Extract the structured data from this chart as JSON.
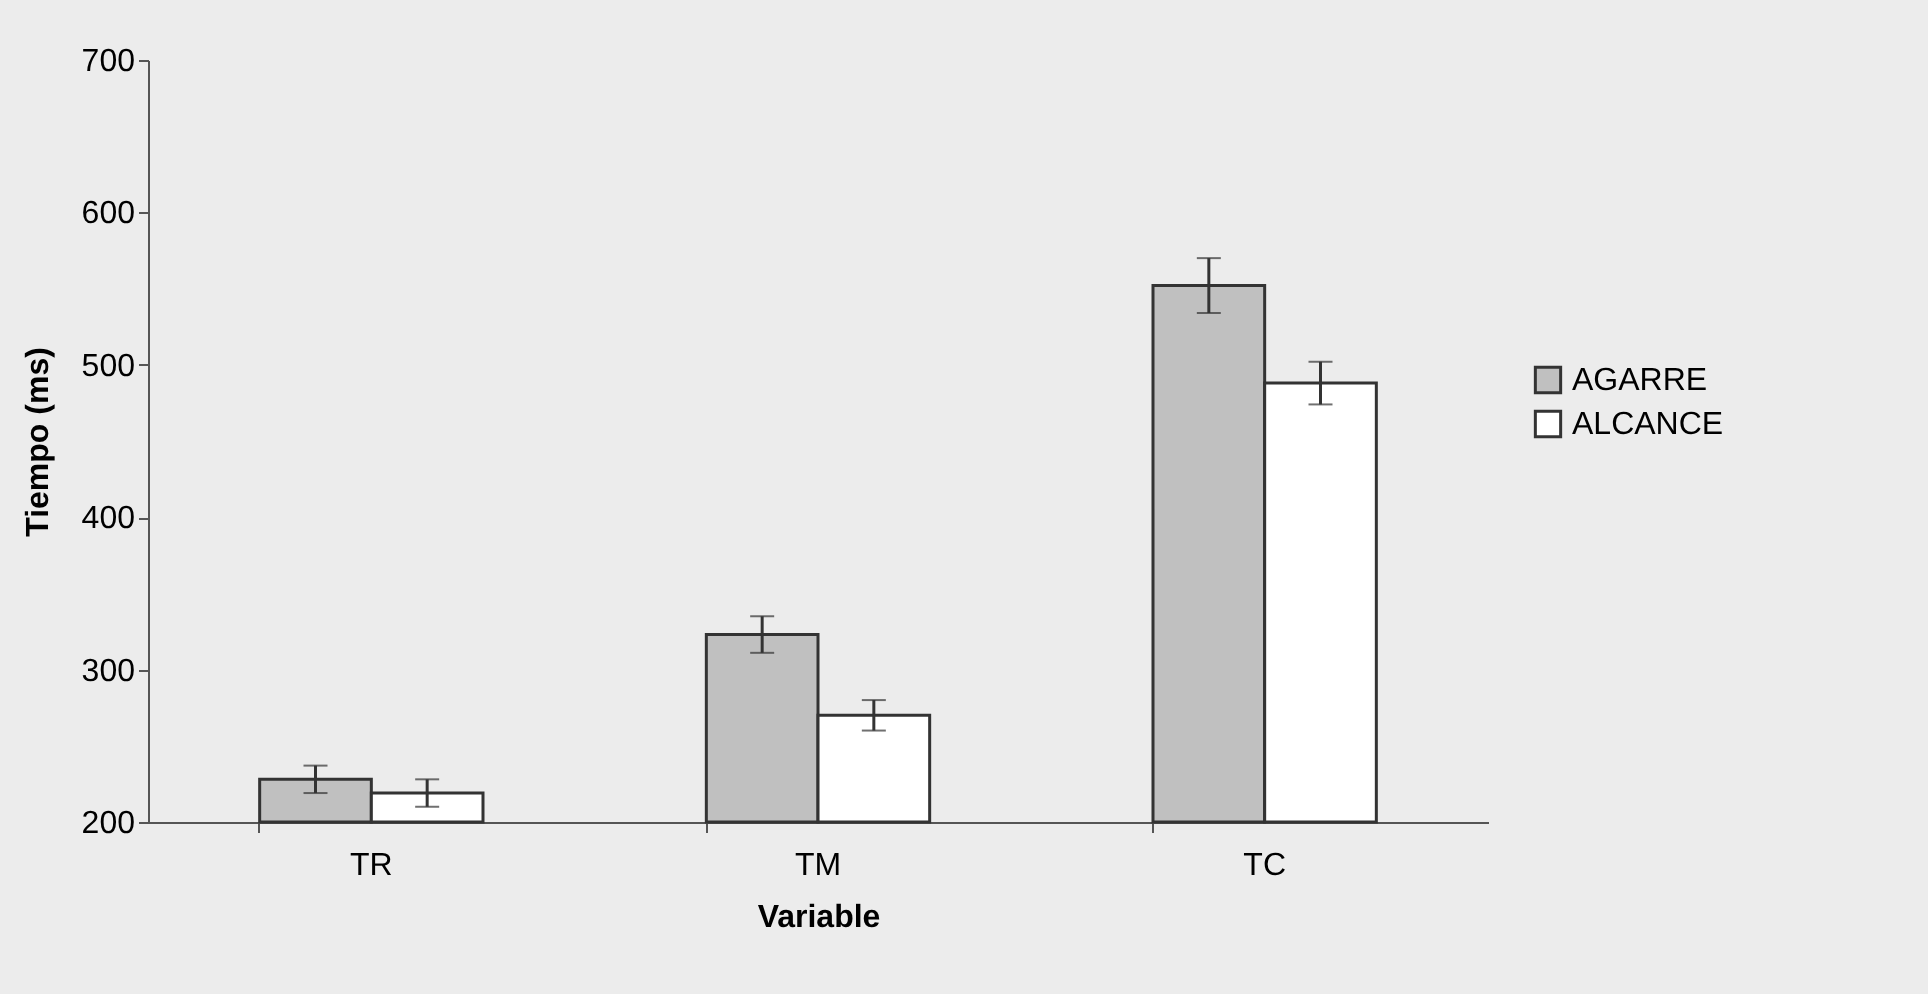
{
  "chart_data": {
    "type": "bar",
    "xlabel": "Variable",
    "ylabel": "Tiempo (ms)",
    "categories": [
      "TR",
      "TM",
      "TC"
    ],
    "series": [
      {
        "name": "AGARRE",
        "color": "#c0c0c0",
        "values": [
          228,
          323,
          552
        ],
        "errors": [
          9,
          12,
          18
        ]
      },
      {
        "name": "ALCANCE",
        "color": "#ffffff",
        "values": [
          219,
          270,
          488
        ],
        "errors": [
          9,
          10,
          14
        ]
      }
    ],
    "ylim": [
      200,
      700
    ],
    "yticks": [
      200,
      300,
      400,
      500,
      600,
      700
    ],
    "grid": false,
    "legend": "right"
  }
}
